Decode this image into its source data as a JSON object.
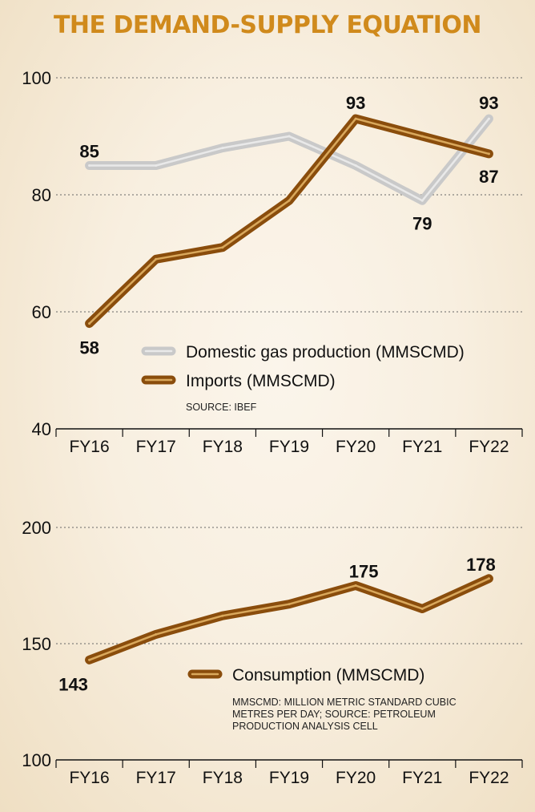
{
  "title": "THE DEMAND-SUPPLY EQUATION",
  "colors": {
    "title": "#d08a1c",
    "imports": "#8a4d0c",
    "imports_highlight": "#d9a85c",
    "domestic": "#c9c9c9",
    "domestic_highlight": "#e9e9e9",
    "consumption": "#8a4d0c"
  },
  "chart_data": [
    {
      "type": "line",
      "title": "",
      "categories": [
        "FY16",
        "FY17",
        "FY18",
        "FY19",
        "FY20",
        "FY21",
        "FY22"
      ],
      "ylim": [
        40,
        100
      ],
      "yticks": [
        "40",
        "60",
        "80",
        "100"
      ],
      "grid": true,
      "legend_position": "lower-right",
      "series": [
        {
          "name": "Domestic gas production (MMSCMD)",
          "values": [
            85,
            85,
            88,
            90,
            85,
            79,
            93
          ]
        },
        {
          "name": "Imports (MMSCMD)",
          "values": [
            58,
            69,
            71,
            79,
            93,
            90,
            87
          ]
        }
      ],
      "data_labels": [
        {
          "series": 0,
          "index": 0,
          "text": "85"
        },
        {
          "series": 0,
          "index": 5,
          "text": "79"
        },
        {
          "series": 0,
          "index": 6,
          "text": "93"
        },
        {
          "series": 1,
          "index": 0,
          "text": "58"
        },
        {
          "series": 1,
          "index": 4,
          "text": "93"
        },
        {
          "series": 1,
          "index": 6,
          "text": "87"
        }
      ],
      "note": "SOURCE: IBEF"
    },
    {
      "type": "line",
      "title": "",
      "categories": [
        "FY16",
        "FY17",
        "FY18",
        "FY19",
        "FY20",
        "FY21",
        "FY22"
      ],
      "ylim": [
        100,
        200
      ],
      "yticks": [
        "100",
        "150",
        "200"
      ],
      "grid": true,
      "legend_position": "lower-right",
      "series": [
        {
          "name": "Consumption (MMSCMD)",
          "values": [
            143,
            154,
            162,
            167,
            175,
            165,
            178
          ]
        }
      ],
      "data_labels": [
        {
          "series": 0,
          "index": 0,
          "text": "143"
        },
        {
          "series": 0,
          "index": 4,
          "text": "175"
        },
        {
          "series": 0,
          "index": 6,
          "text": "178"
        }
      ],
      "note_lines": [
        "MMSCMD: MILLION METRIC STANDARD CUBIC",
        "METRES PER DAY; SOURCE: PETROLEUM",
        "PRODUCTION ANALYSIS CELL"
      ]
    }
  ]
}
